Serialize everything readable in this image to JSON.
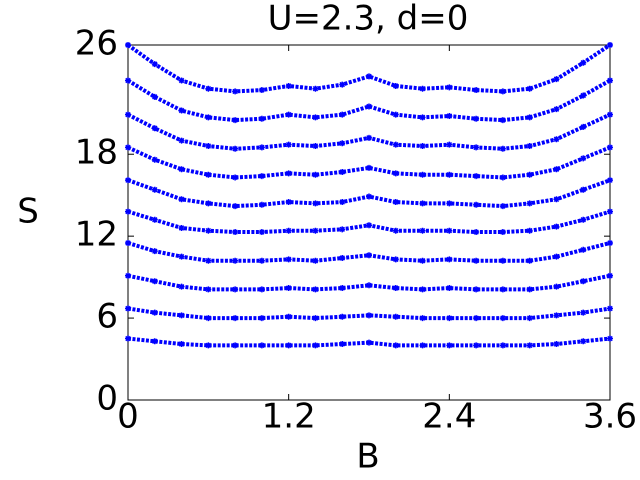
{
  "chart_data": {
    "type": "line",
    "title": "U=2.3, d=0",
    "x_label": "B",
    "y_label": "S",
    "x": [
      0,
      0.2,
      0.4,
      0.6,
      0.8,
      1.0,
      1.2,
      1.4,
      1.6,
      1.8,
      2.0,
      2.2,
      2.4,
      2.6,
      2.8,
      3.0,
      3.2,
      3.4,
      3.6
    ],
    "series": [
      {
        "color": "#0000ff",
        "values": [
          4.5,
          4.3,
          4.1,
          4.0,
          4.0,
          4.0,
          4.0,
          4.0,
          4.1,
          4.2,
          4.0,
          4.0,
          4.0,
          4.0,
          4.0,
          4.0,
          4.1,
          4.3,
          4.5
        ]
      },
      {
        "color": "#0000ff",
        "values": [
          6.7,
          6.4,
          6.2,
          6.0,
          6.0,
          6.0,
          6.1,
          6.0,
          6.1,
          6.2,
          6.1,
          6.0,
          6.0,
          6.0,
          6.0,
          6.0,
          6.2,
          6.4,
          6.7
        ]
      },
      {
        "color": "#0000ff",
        "values": [
          9.1,
          8.7,
          8.3,
          8.1,
          8.1,
          8.1,
          8.2,
          8.1,
          8.2,
          8.4,
          8.2,
          8.1,
          8.2,
          8.1,
          8.1,
          8.1,
          8.3,
          8.7,
          9.1
        ]
      },
      {
        "color": "#0000ff",
        "values": [
          11.5,
          10.9,
          10.5,
          10.2,
          10.2,
          10.2,
          10.3,
          10.2,
          10.4,
          10.6,
          10.3,
          10.2,
          10.3,
          10.2,
          10.2,
          10.2,
          10.5,
          11.0,
          11.5
        ]
      },
      {
        "color": "#0000ff",
        "values": [
          13.8,
          13.2,
          12.6,
          12.4,
          12.3,
          12.3,
          12.4,
          12.4,
          12.5,
          12.8,
          12.4,
          12.4,
          12.4,
          12.3,
          12.3,
          12.4,
          12.7,
          13.2,
          13.8
        ]
      },
      {
        "color": "#0000ff",
        "values": [
          16.1,
          15.4,
          14.7,
          14.4,
          14.2,
          14.3,
          14.5,
          14.4,
          14.5,
          14.9,
          14.5,
          14.4,
          14.4,
          14.3,
          14.2,
          14.4,
          14.7,
          15.4,
          16.1
        ]
      },
      {
        "color": "#0000ff",
        "values": [
          18.5,
          17.6,
          16.9,
          16.5,
          16.3,
          16.4,
          16.6,
          16.5,
          16.7,
          17.0,
          16.6,
          16.5,
          16.5,
          16.4,
          16.3,
          16.5,
          16.9,
          17.7,
          18.5
        ]
      },
      {
        "color": "#0000ff",
        "values": [
          20.9,
          19.9,
          19.0,
          18.6,
          18.4,
          18.5,
          18.7,
          18.6,
          18.8,
          19.2,
          18.7,
          18.6,
          18.7,
          18.5,
          18.4,
          18.6,
          19.1,
          20.0,
          20.9
        ]
      },
      {
        "color": "#0000ff",
        "values": [
          23.4,
          22.2,
          21.2,
          20.7,
          20.5,
          20.6,
          20.9,
          20.7,
          20.9,
          21.5,
          20.9,
          20.7,
          20.8,
          20.6,
          20.5,
          20.7,
          21.3,
          22.3,
          23.4
        ]
      },
      {
        "color": "#0000ff",
        "values": [
          26.0,
          24.6,
          23.4,
          22.8,
          22.6,
          22.7,
          23.0,
          22.8,
          23.1,
          23.7,
          23.0,
          22.8,
          22.9,
          22.7,
          22.6,
          22.8,
          23.5,
          24.7,
          26.0
        ]
      }
    ],
    "xlim": [
      0,
      3.6
    ],
    "ylim": [
      0,
      26
    ],
    "xticks": [
      0,
      1.2,
      2.4,
      3.6
    ],
    "yticks": [
      0,
      6,
      12,
      18,
      26
    ],
    "grid": false
  }
}
